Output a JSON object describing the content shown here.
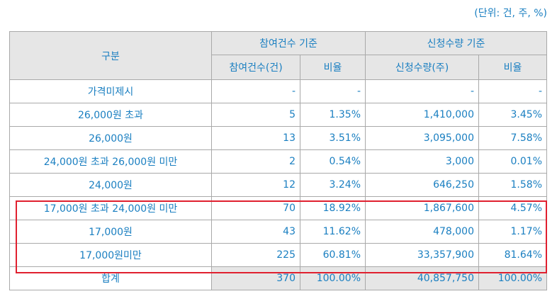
{
  "unit_note": "(단위: 건, 주, %)",
  "headers": {
    "category": "구분",
    "group_participation": "참여건수 기준",
    "group_quantity": "신청수량 기준",
    "participation_count": "참여건수(건)",
    "participation_ratio": "비율",
    "quantity": "신청수량(주)",
    "quantity_ratio": "비율"
  },
  "rows": [
    {
      "label": "가격미제시",
      "count": "-",
      "count_ratio": "-",
      "qty": "-",
      "qty_ratio": "-"
    },
    {
      "label": "26,000원 초과",
      "count": "5",
      "count_ratio": "1.35%",
      "qty": "1,410,000",
      "qty_ratio": "3.45%"
    },
    {
      "label": "26,000원",
      "count": "13",
      "count_ratio": "3.51%",
      "qty": "3,095,000",
      "qty_ratio": "7.58%"
    },
    {
      "label": "24,000원 초과 26,000원 미만",
      "count": "2",
      "count_ratio": "0.54%",
      "qty": "3,000",
      "qty_ratio": "0.01%"
    },
    {
      "label": "24,000원",
      "count": "12",
      "count_ratio": "3.24%",
      "qty": "646,250",
      "qty_ratio": "1.58%"
    },
    {
      "label": "17,000원 초과 24,000원 미만",
      "count": "70",
      "count_ratio": "18.92%",
      "qty": "1,867,600",
      "qty_ratio": "4.57%"
    },
    {
      "label": "17,000원",
      "count": "43",
      "count_ratio": "11.62%",
      "qty": "478,000",
      "qty_ratio": "1.17%"
    },
    {
      "label": "17,000원미만",
      "count": "225",
      "count_ratio": "60.81%",
      "qty": "33,357,900",
      "qty_ratio": "81.64%"
    }
  ],
  "total": {
    "label": "합계",
    "count": "370",
    "count_ratio": "100.00%",
    "qty": "40,857,750",
    "qty_ratio": "100.00%"
  },
  "highlight_color": "#e0202f"
}
